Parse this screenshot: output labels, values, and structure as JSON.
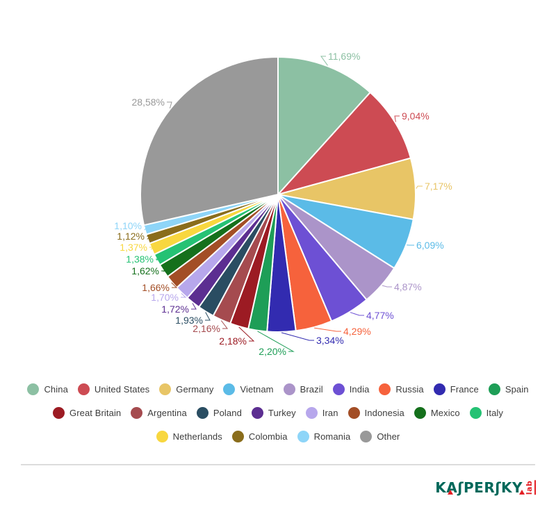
{
  "chart_data": {
    "type": "pie",
    "title": "",
    "legend_position": "bottom",
    "label_format": "percent-comma-decimal",
    "slices": [
      {
        "name": "China",
        "value": 11.69,
        "label": "11,69%",
        "color": "#8CC0A3"
      },
      {
        "name": "United States",
        "value": 9.04,
        "label": "9,04%",
        "color": "#CD4B53"
      },
      {
        "name": "Germany",
        "value": 7.17,
        "label": "7,17%",
        "color": "#E8C566"
      },
      {
        "name": "Vietnam",
        "value": 6.09,
        "label": "6,09%",
        "color": "#5BBBE7"
      },
      {
        "name": "Brazil",
        "value": 4.87,
        "label": "4,87%",
        "color": "#AB94C9"
      },
      {
        "name": "India",
        "value": 4.77,
        "label": "4,77%",
        "color": "#6D50D4"
      },
      {
        "name": "Russia",
        "value": 4.29,
        "label": "4,29%",
        "color": "#F6623C"
      },
      {
        "name": "France",
        "value": 3.34,
        "label": "3,34%",
        "color": "#322BB0"
      },
      {
        "name": "Spain",
        "value": 2.2,
        "label": "2,20%",
        "color": "#1E9E57"
      },
      {
        "name": "Great Britain",
        "value": 2.18,
        "label": "2,18%",
        "color": "#9C1B23"
      },
      {
        "name": "Argentina",
        "value": 2.16,
        "label": "2,16%",
        "color": "#A54B4F"
      },
      {
        "name": "Poland",
        "value": 1.93,
        "label": "1,93%",
        "color": "#2A4D62"
      },
      {
        "name": "Turkey",
        "value": 1.72,
        "label": "1,72%",
        "color": "#5C2E91"
      },
      {
        "name": "Iran",
        "value": 1.7,
        "label": "1,70%",
        "color": "#B7A7EC"
      },
      {
        "name": "Indonesia",
        "value": 1.66,
        "label": "1,66%",
        "color": "#A34E26"
      },
      {
        "name": "Mexico",
        "value": 1.62,
        "label": "1,62%",
        "color": "#15701C"
      },
      {
        "name": "Italy",
        "value": 1.38,
        "label": "1,38%",
        "color": "#25C274"
      },
      {
        "name": "Netherlands",
        "value": 1.37,
        "label": "1,37%",
        "color": "#F8D73F"
      },
      {
        "name": "Colombia",
        "value": 1.12,
        "label": "1,12%",
        "color": "#8A6D1C"
      },
      {
        "name": "Romania",
        "value": 1.1,
        "label": "1,10%",
        "color": "#8ED5F8"
      },
      {
        "name": "Other",
        "value": 28.58,
        "label": "28,58%",
        "color": "#999999"
      }
    ],
    "legend_rows": [
      [
        "China",
        "United States",
        "Germany",
        "Vietnam",
        "Brazil",
        "India",
        "Russia",
        "France",
        "Spain"
      ],
      [
        "Great Britain",
        "Argentina",
        "Poland",
        "Turkey",
        "Iran",
        "Indonesia",
        "Mexico",
        "Italy"
      ],
      [
        "Netherlands",
        "Colombia",
        "Romania",
        "Other"
      ]
    ]
  },
  "footer": {
    "logo": {
      "brand": "KAʃPERʃKY",
      "lab": "lab",
      "brand_color": "#00685A",
      "accent_color": "#E31E24"
    }
  }
}
